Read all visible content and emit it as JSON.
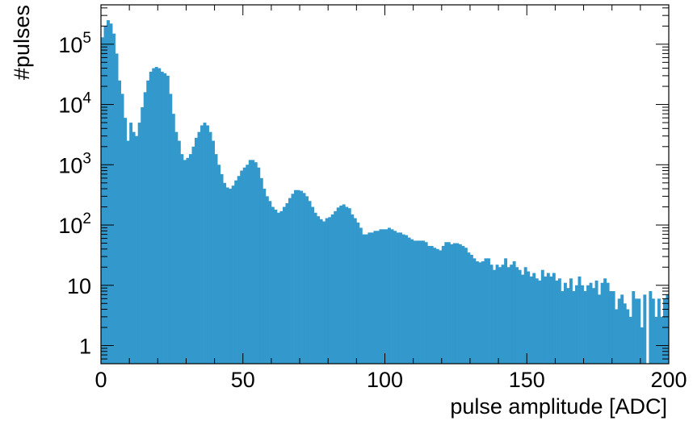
{
  "chart_data": {
    "type": "bar",
    "title": "",
    "xlabel": "pulse amplitude [ADC]",
    "ylabel": "#pulses",
    "xlim": [
      0,
      200
    ],
    "ylim": [
      0.5,
      450000
    ],
    "yscale": "log",
    "grid": false,
    "bar_color": "#3399cc",
    "bin_width": 1,
    "x_ticks": [
      {
        "value": 0,
        "label": "0"
      },
      {
        "value": 50,
        "label": "50"
      },
      {
        "value": 100,
        "label": "100"
      },
      {
        "value": 150,
        "label": "150"
      },
      {
        "value": 200,
        "label": "200"
      }
    ],
    "y_ticks": [
      {
        "value": 1,
        "base": "1",
        "exp": ""
      },
      {
        "value": 10,
        "base": "10",
        "exp": ""
      },
      {
        "value": 100,
        "base": "10",
        "exp": "2"
      },
      {
        "value": 1000,
        "base": "10",
        "exp": "3"
      },
      {
        "value": 10000,
        "base": "10",
        "exp": "4"
      },
      {
        "value": 100000,
        "base": "10",
        "exp": "5"
      }
    ],
    "values": [
      130000,
      200000,
      250000,
      220000,
      150000,
      70000,
      25000,
      15000,
      6000,
      2500,
      5000,
      3500,
      3000,
      5000,
      9000,
      16000,
      25000,
      35000,
      40000,
      42000,
      40000,
      35000,
      33000,
      30000,
      15000,
      7000,
      3500,
      2500,
      1500,
      1200,
      1300,
      1500,
      2000,
      2800,
      3500,
      4500,
      5000,
      4500,
      3500,
      2500,
      1500,
      1000,
      700,
      500,
      420,
      400,
      450,
      550,
      650,
      800,
      900,
      1000,
      1200,
      1200,
      1100,
      900,
      600,
      400,
      300,
      250,
      200,
      180,
      160,
      170,
      200,
      230,
      280,
      330,
      380,
      380,
      370,
      340,
      300,
      250,
      200,
      160,
      140,
      125,
      115,
      130,
      135,
      150,
      170,
      195,
      210,
      220,
      200,
      190,
      150,
      130,
      110,
      90,
      70,
      70,
      75,
      75,
      80,
      80,
      85,
      85,
      85,
      90,
      85,
      80,
      75,
      75,
      70,
      68,
      62,
      58,
      55,
      55,
      55,
      55,
      52,
      45,
      45,
      42,
      40,
      38,
      45,
      52,
      52,
      48,
      50,
      50,
      48,
      45,
      42,
      35,
      32,
      28,
      25,
      24,
      25,
      28,
      28,
      22,
      18,
      22,
      20,
      22,
      28,
      20,
      22,
      25,
      20,
      18,
      15,
      20,
      17,
      14,
      16,
      13,
      12,
      18,
      14,
      16,
      14,
      16,
      12,
      13,
      8,
      11,
      9,
      13,
      8,
      10,
      14,
      10,
      8,
      10,
      11,
      9,
      12,
      7,
      11,
      13,
      11,
      8,
      8,
      4,
      6,
      7,
      5,
      4,
      3,
      8,
      6,
      6,
      2,
      7,
      0.5,
      8,
      6,
      3,
      6,
      3,
      6,
      7
    ]
  }
}
